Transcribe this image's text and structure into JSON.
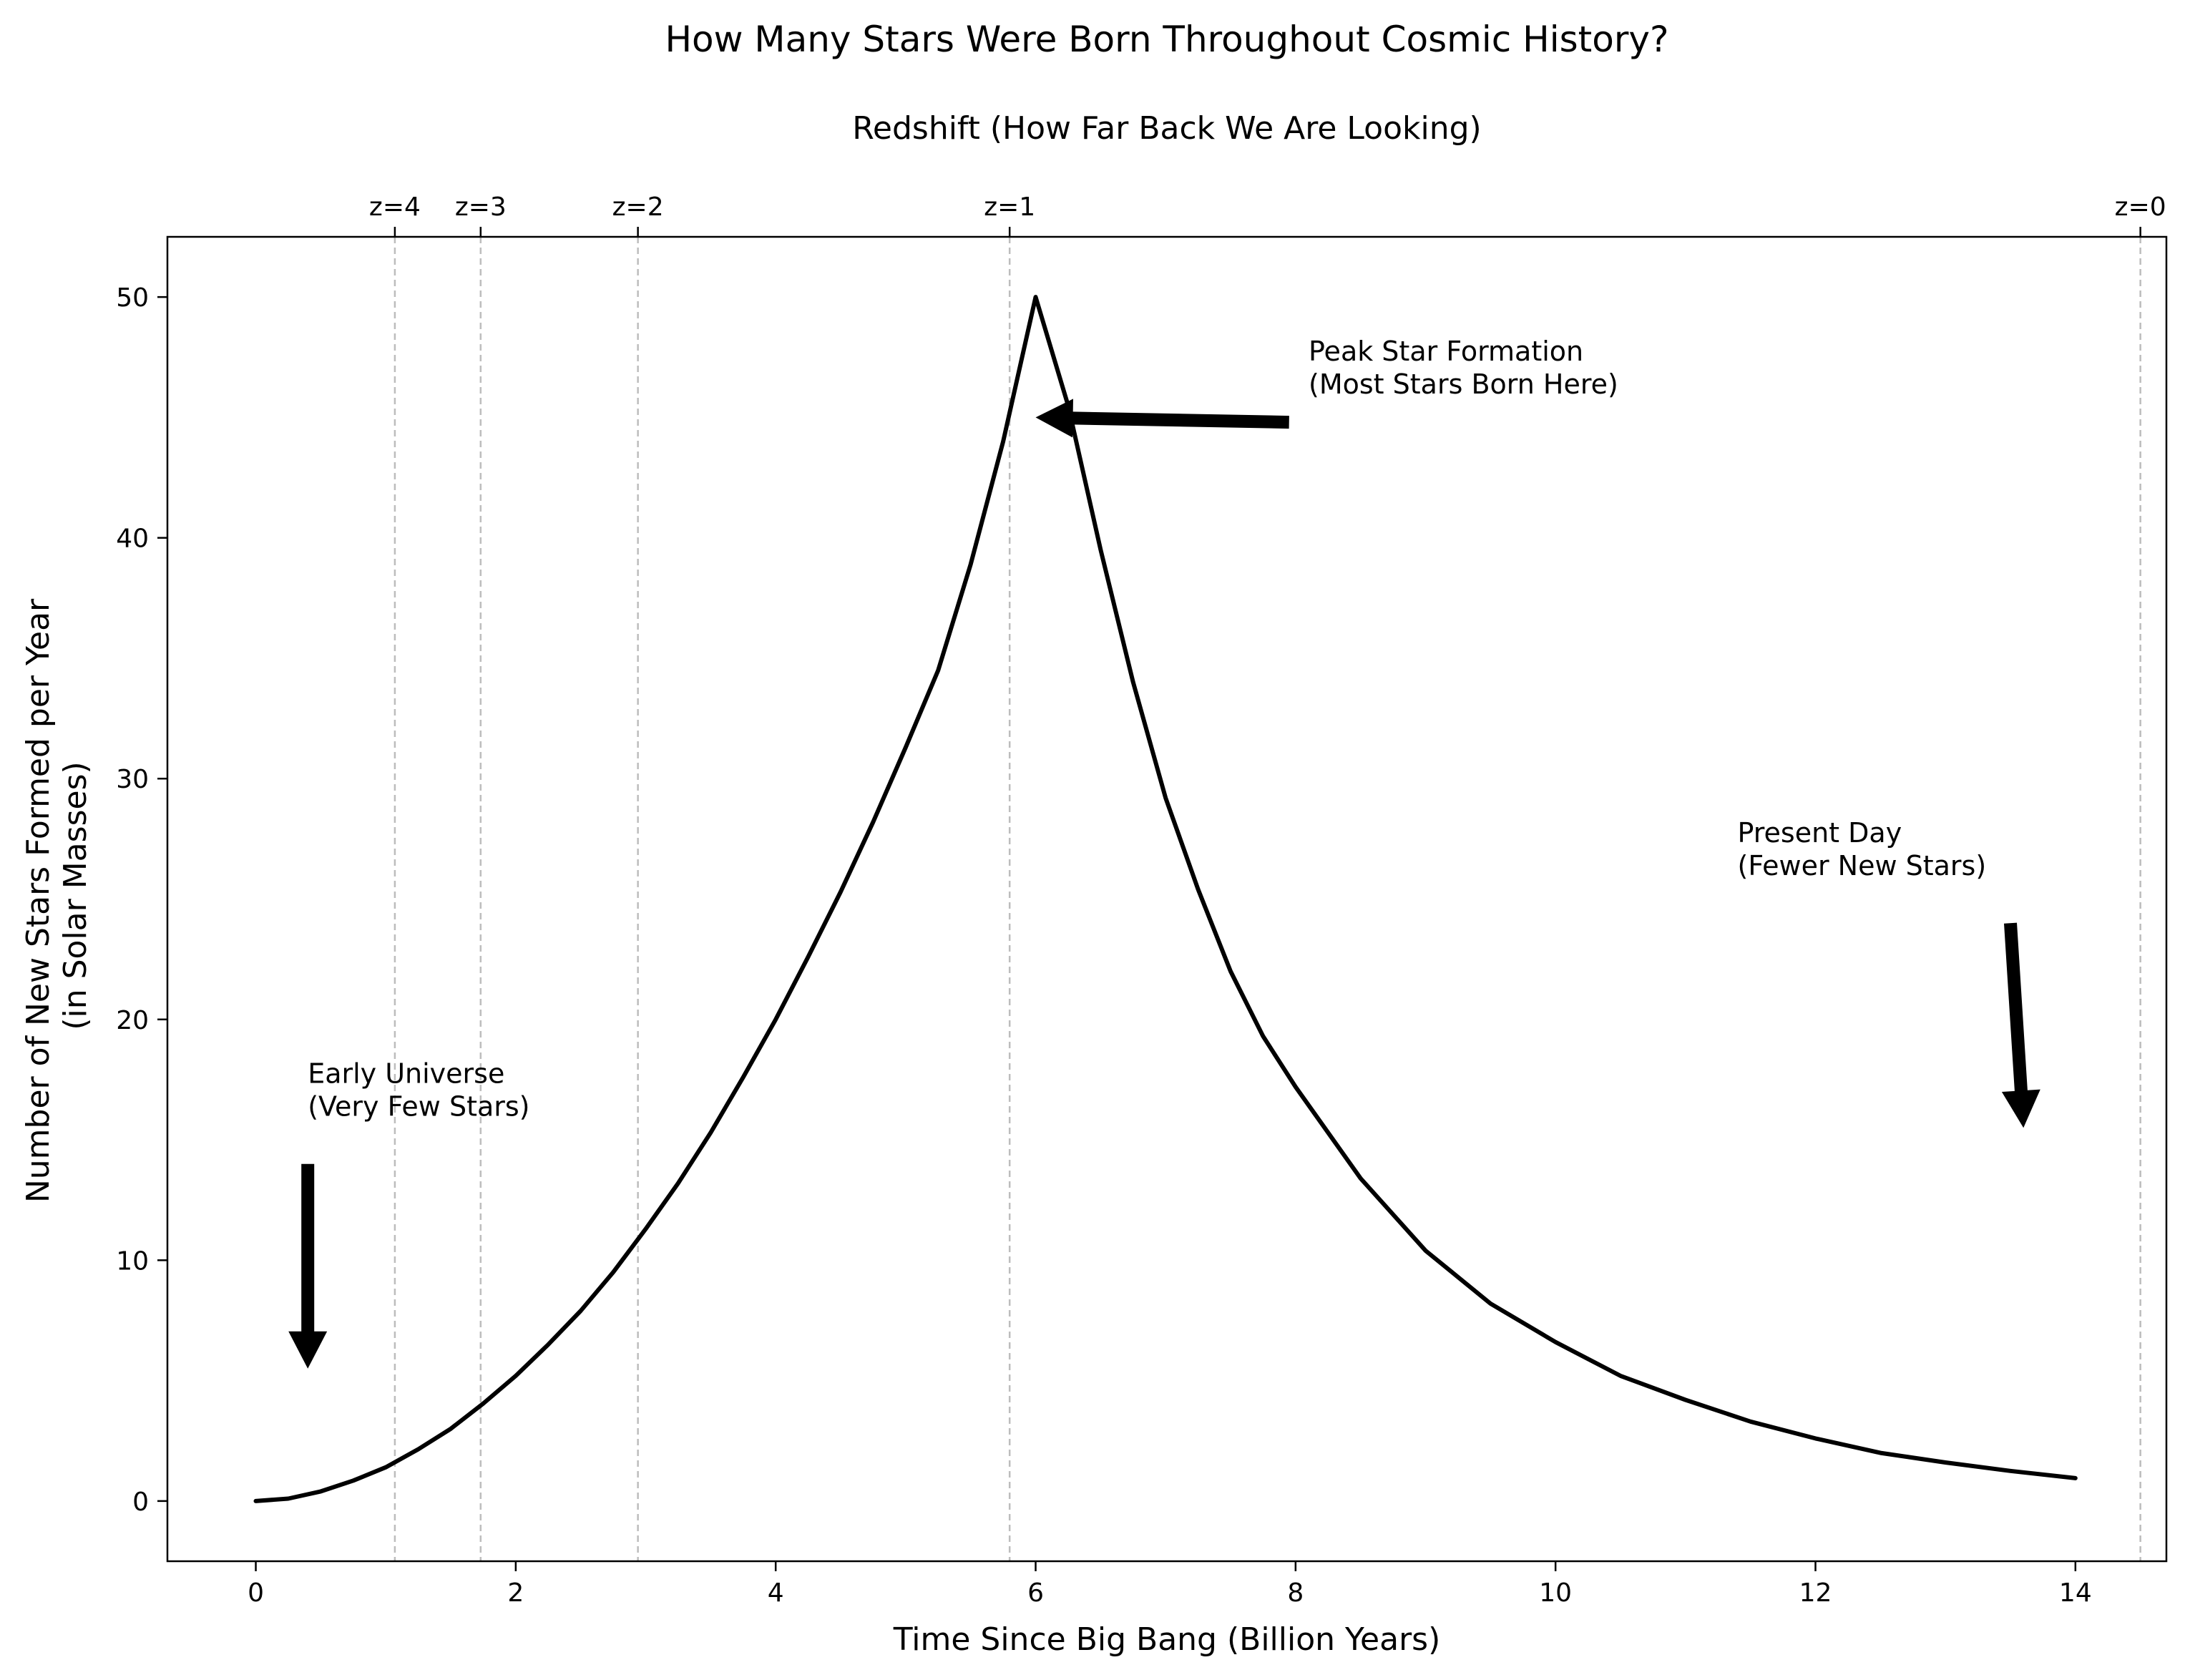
{
  "chart_data": {
    "type": "line",
    "title": "How Many Stars Were Born Throughout Cosmic History?",
    "xlabel": "Time Since Big Bang (Billion Years)",
    "ylabel": [
      "Number of New Stars Formed per Year",
      "(in Solar Masses)"
    ],
    "top_axis_label": "Redshift (How Far Back We Are Looking)",
    "xlim": [
      -0.68,
      14.7
    ],
    "ylim": [
      -2.5,
      52.5
    ],
    "x_ticks": [
      0,
      2,
      4,
      6,
      8,
      10,
      12,
      14
    ],
    "y_ticks": [
      0,
      10,
      20,
      30,
      40,
      50
    ],
    "grid": false,
    "redshift_ticks": [
      {
        "label": "z=4",
        "x": 1.07
      },
      {
        "label": "z=3",
        "x": 1.73
      },
      {
        "label": "z=2",
        "x": 2.94
      },
      {
        "label": "z=1",
        "x": 5.8
      },
      {
        "label": "z=0",
        "x": 14.5
      }
    ],
    "series": [
      {
        "color": "#000000",
        "x": [
          0,
          0.25,
          0.5,
          0.75,
          1.0,
          1.25,
          1.5,
          1.75,
          2.0,
          2.25,
          2.5,
          2.75,
          3.0,
          3.25,
          3.5,
          3.75,
          4.0,
          4.25,
          4.5,
          4.75,
          5.0,
          5.25,
          5.5,
          5.75,
          6.0,
          6.25,
          6.5,
          6.75,
          7.0,
          7.25,
          7.5,
          7.75,
          8.0,
          8.5,
          9.0,
          9.5,
          10.0,
          10.5,
          11.0,
          11.5,
          12.0,
          12.5,
          13.0,
          13.5,
          14.0
        ],
        "y": [
          0.0,
          0.1,
          0.4,
          0.85,
          1.4,
          2.15,
          3.0,
          4.05,
          5.2,
          6.5,
          7.9,
          9.5,
          11.3,
          13.2,
          15.3,
          17.6,
          20.0,
          22.6,
          25.3,
          28.2,
          31.3,
          34.5,
          38.9,
          44.0,
          50.0,
          45.5,
          39.5,
          34.0,
          29.2,
          25.4,
          22.0,
          19.3,
          17.2,
          13.4,
          10.4,
          8.2,
          6.6,
          5.2,
          4.2,
          3.3,
          2.6,
          2.0,
          1.6,
          1.25,
          0.95
        ]
      }
    ],
    "annotations": [
      {
        "text": [
          "Early Universe",
          "(Very Few Stars)"
        ],
        "text_at": [
          0.4,
          16.0
        ],
        "arrow_from": [
          0.4,
          14.0
        ],
        "arrow_to": [
          0.4,
          5.5
        ]
      },
      {
        "text": [
          "Peak Star Formation",
          "(Most Stars Born Here)"
        ],
        "text_at": [
          8.1,
          46.0
        ],
        "arrow_from": [
          7.95,
          44.8
        ],
        "arrow_to": [
          6.0,
          45.0
        ]
      },
      {
        "text": [
          "Present Day",
          "(Fewer New Stars)"
        ],
        "text_at": [
          11.4,
          26.0
        ],
        "arrow_from": [
          13.5,
          24.0
        ],
        "arrow_to": [
          13.6,
          15.5
        ]
      }
    ]
  }
}
